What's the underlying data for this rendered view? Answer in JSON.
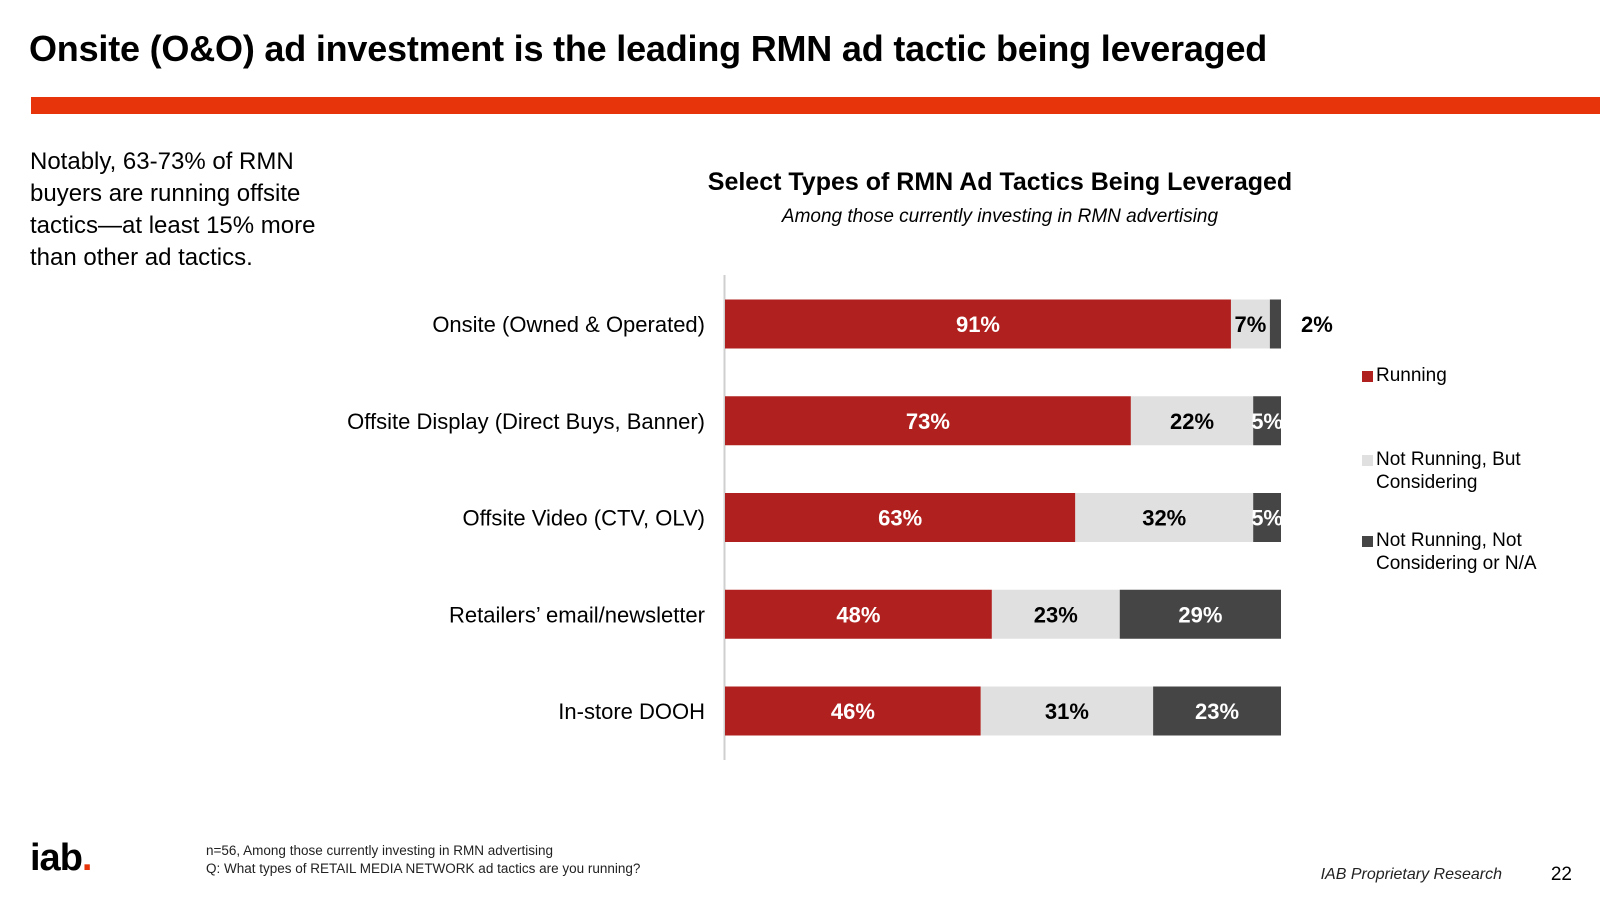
{
  "slide": {
    "title": "Onsite (O&O) ad investment is the leading RMN ad tactic being leveraged",
    "accent_color": "#e8340a",
    "callout": "Notably, 63-73% of RMN buyers are running offsite tactics—at least 15% more than other ad tactics."
  },
  "chart_data": {
    "type": "bar",
    "orientation": "horizontal",
    "stacked": true,
    "title": "Select Types of RMN Ad Tactics Being Leveraged",
    "subtitle": "Among those currently investing in RMN advertising",
    "categories": [
      "Onsite (Owned & Operated)",
      "Offsite Display (Direct Buys, Banner)",
      "Offsite Video (CTV, OLV)",
      "Retailers’ email/newsletter",
      "In-store DOOH"
    ],
    "series": [
      {
        "name": "Running",
        "color": "#b0201e",
        "label_color": "#ffffff",
        "values": [
          91,
          73,
          63,
          48,
          46
        ],
        "labels": [
          "91%",
          "73%",
          "63%",
          "48%",
          "46%"
        ]
      },
      {
        "name": "Not Running, But Considering",
        "color": "#e0e0e0",
        "label_color": "#000000",
        "values": [
          7,
          22,
          32,
          23,
          31
        ],
        "labels": [
          "7%",
          "22%",
          "32%",
          "23%",
          "31%"
        ]
      },
      {
        "name": "Not Running, Not Considering or N/A",
        "color": "#454545",
        "label_color": "#ffffff",
        "values": [
          2,
          5,
          5,
          29,
          23
        ],
        "labels": [
          "2%",
          "5%",
          "5%",
          "29%",
          "23%"
        ]
      }
    ],
    "xlim": [
      0,
      100
    ],
    "grid": false,
    "legend_position": "right"
  },
  "footer": {
    "logo": "iab",
    "logo_dot": ".",
    "footnote_line1": "n=56, Among those currently investing in RMN advertising",
    "footnote_line2": "Q: What types of RETAIL MEDIA NETWORK ad tactics are you running?",
    "brand": "IAB Proprietary Research",
    "page_number": "22"
  }
}
